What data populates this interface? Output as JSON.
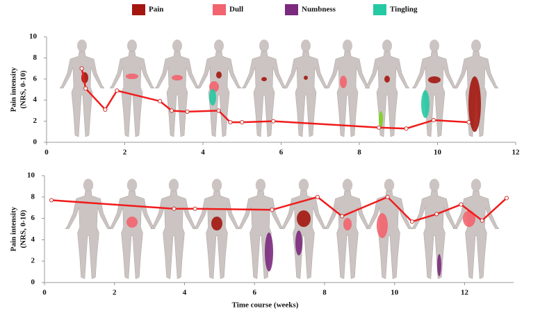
{
  "legend": [
    {
      "name": "Pain",
      "color": "#a3170f"
    },
    {
      "name": "Dull",
      "color": "#f2646e"
    },
    {
      "name": "Numbness",
      "color": "#7b2a7e"
    },
    {
      "name": "Tingling",
      "color": "#25c9a3"
    }
  ],
  "chart_data": [
    {
      "type": "line",
      "ylabel": [
        "Pain intensity",
        "(NRS, 0-10)"
      ],
      "x": [
        0.9,
        1.0,
        1.5,
        1.8,
        2.9,
        3.2,
        3.6,
        4.4,
        4.7,
        5.0,
        5.8,
        8.5,
        9.2,
        9.9,
        10.8
      ],
      "series": [
        {
          "name": "Pain intensity",
          "color": "#f01b1b",
          "values": [
            7.0,
            5.1,
            3.1,
            4.9,
            3.9,
            3.0,
            2.9,
            3.0,
            1.9,
            1.9,
            2.0,
            1.4,
            1.3,
            2.1,
            1.9
          ]
        }
      ],
      "xlim": [
        0,
        12
      ],
      "xticks": [
        0,
        2,
        4,
        6,
        8,
        10,
        12
      ],
      "ylim": [
        0,
        10
      ],
      "yticks": [
        0,
        2,
        4,
        6,
        8,
        10
      ]
    },
    {
      "type": "line",
      "ylabel": [
        "Pain intensity",
        "(NRS, 0-10)"
      ],
      "xlabel": "Time course (weeks)",
      "x": [
        0.2,
        3.7,
        4.3,
        6.5,
        7.8,
        8.5,
        9.8,
        10.5,
        11.2,
        11.9,
        12.5,
        13.2
      ],
      "series": [
        {
          "name": "Pain intensity",
          "color": "#f01b1b",
          "values": [
            7.7,
            6.9,
            6.9,
            6.8,
            8.0,
            6.2,
            8.0,
            5.7,
            6.4,
            7.3,
            5.8,
            7.9
          ]
        }
      ],
      "xlim": [
        0,
        13.4
      ],
      "xticks": [
        0,
        2,
        4,
        6,
        8,
        10,
        12
      ],
      "ylim": [
        0,
        10
      ],
      "yticks": [
        0,
        2,
        4,
        6,
        8,
        10
      ]
    }
  ]
}
